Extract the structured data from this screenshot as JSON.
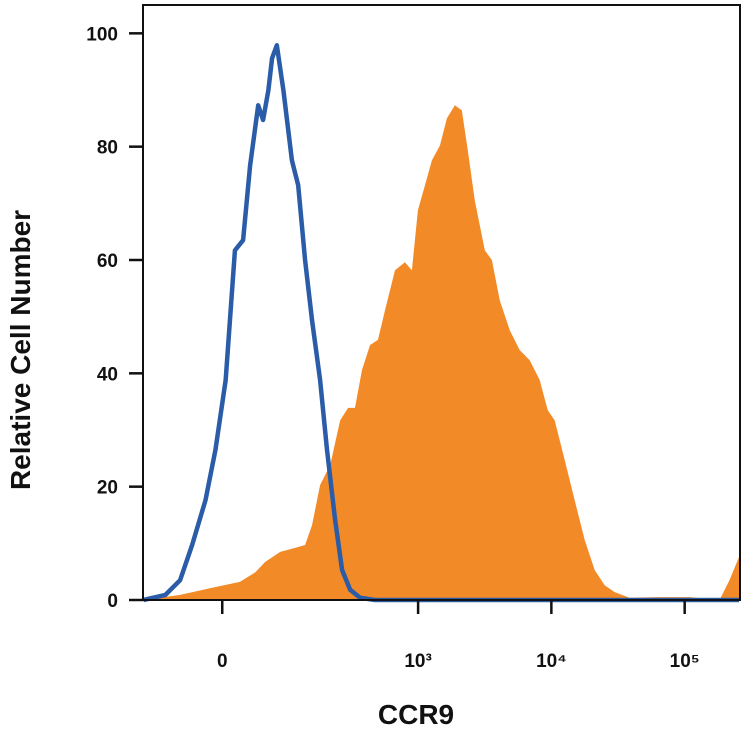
{
  "chart_data": {
    "type": "histogram-overlay",
    "xlabel": "CCR9",
    "ylabel": "Relative Cell Number",
    "xscale": "biexponential",
    "xlim": [
      -125,
      260000
    ],
    "ylim": [
      0,
      105
    ],
    "xticks": [
      0,
      {
        "value": 1000,
        "label": "10³"
      },
      {
        "value": 10000,
        "label": "10⁴"
      },
      {
        "value": 100000,
        "label": "10⁵"
      }
    ],
    "yticks": [
      0,
      20,
      40,
      60,
      80,
      100
    ],
    "series": [
      {
        "color": "#f28a28",
        "style": "fill",
        "x": [
          -124,
          -54,
          -14,
          21,
          41,
          55,
          80,
          110,
          134,
          153,
          178,
          214,
          256,
          295,
          333,
          377,
          434,
          498,
          563,
          670,
          796,
          898,
          997,
          1126,
          1270,
          1459,
          1645,
          1888,
          2130,
          2360,
          2665,
          3170,
          3580,
          4100,
          4875,
          5790,
          6880,
          8180,
          9390,
          10590,
          12590,
          14960,
          17780,
          21130,
          25100,
          29850,
          38600,
          64800,
          108800,
          182600,
          216900,
          256000
        ],
        "values": [
          0,
          0.9,
          2.1,
          3.2,
          4.9,
          6.7,
          8.5,
          9.2,
          9.7,
          13.2,
          20.3,
          23.8,
          31.7,
          33.9,
          33.9,
          40.6,
          45.0,
          45.9,
          51.1,
          58.2,
          59.6,
          58.2,
          68.8,
          73.2,
          77.6,
          80.2,
          85.0,
          87.3,
          86.4,
          79.4,
          70.5,
          61.7,
          60.0,
          52.9,
          47.6,
          44.1,
          42.3,
          38.8,
          33.5,
          31.7,
          24.7,
          17.6,
          10.6,
          5.3,
          2.6,
          1.4,
          0.4,
          0.5,
          0.5,
          0,
          3.5,
          7.6
        ]
      },
      {
        "color": "#2a5ca8",
        "style": "line",
        "x": [
          -124,
          -78,
          -54,
          -37,
          -20,
          -8,
          4,
          15,
          25,
          34,
          45,
          52,
          60,
          66,
          74,
          86,
          103,
          117,
          134,
          153,
          178,
          202,
          234,
          265,
          306,
          364,
          473,
          256000
        ],
        "values": [
          0,
          0.9,
          3.5,
          9.7,
          17.6,
          26.5,
          38.8,
          61.7,
          63.5,
          76.7,
          87.3,
          84.7,
          89.9,
          95.6,
          97.9,
          89.9,
          77.6,
          73.2,
          60.0,
          49.4,
          38.8,
          26.5,
          14.1,
          5.3,
          1.8,
          0.4,
          0,
          0
        ]
      }
    ]
  }
}
